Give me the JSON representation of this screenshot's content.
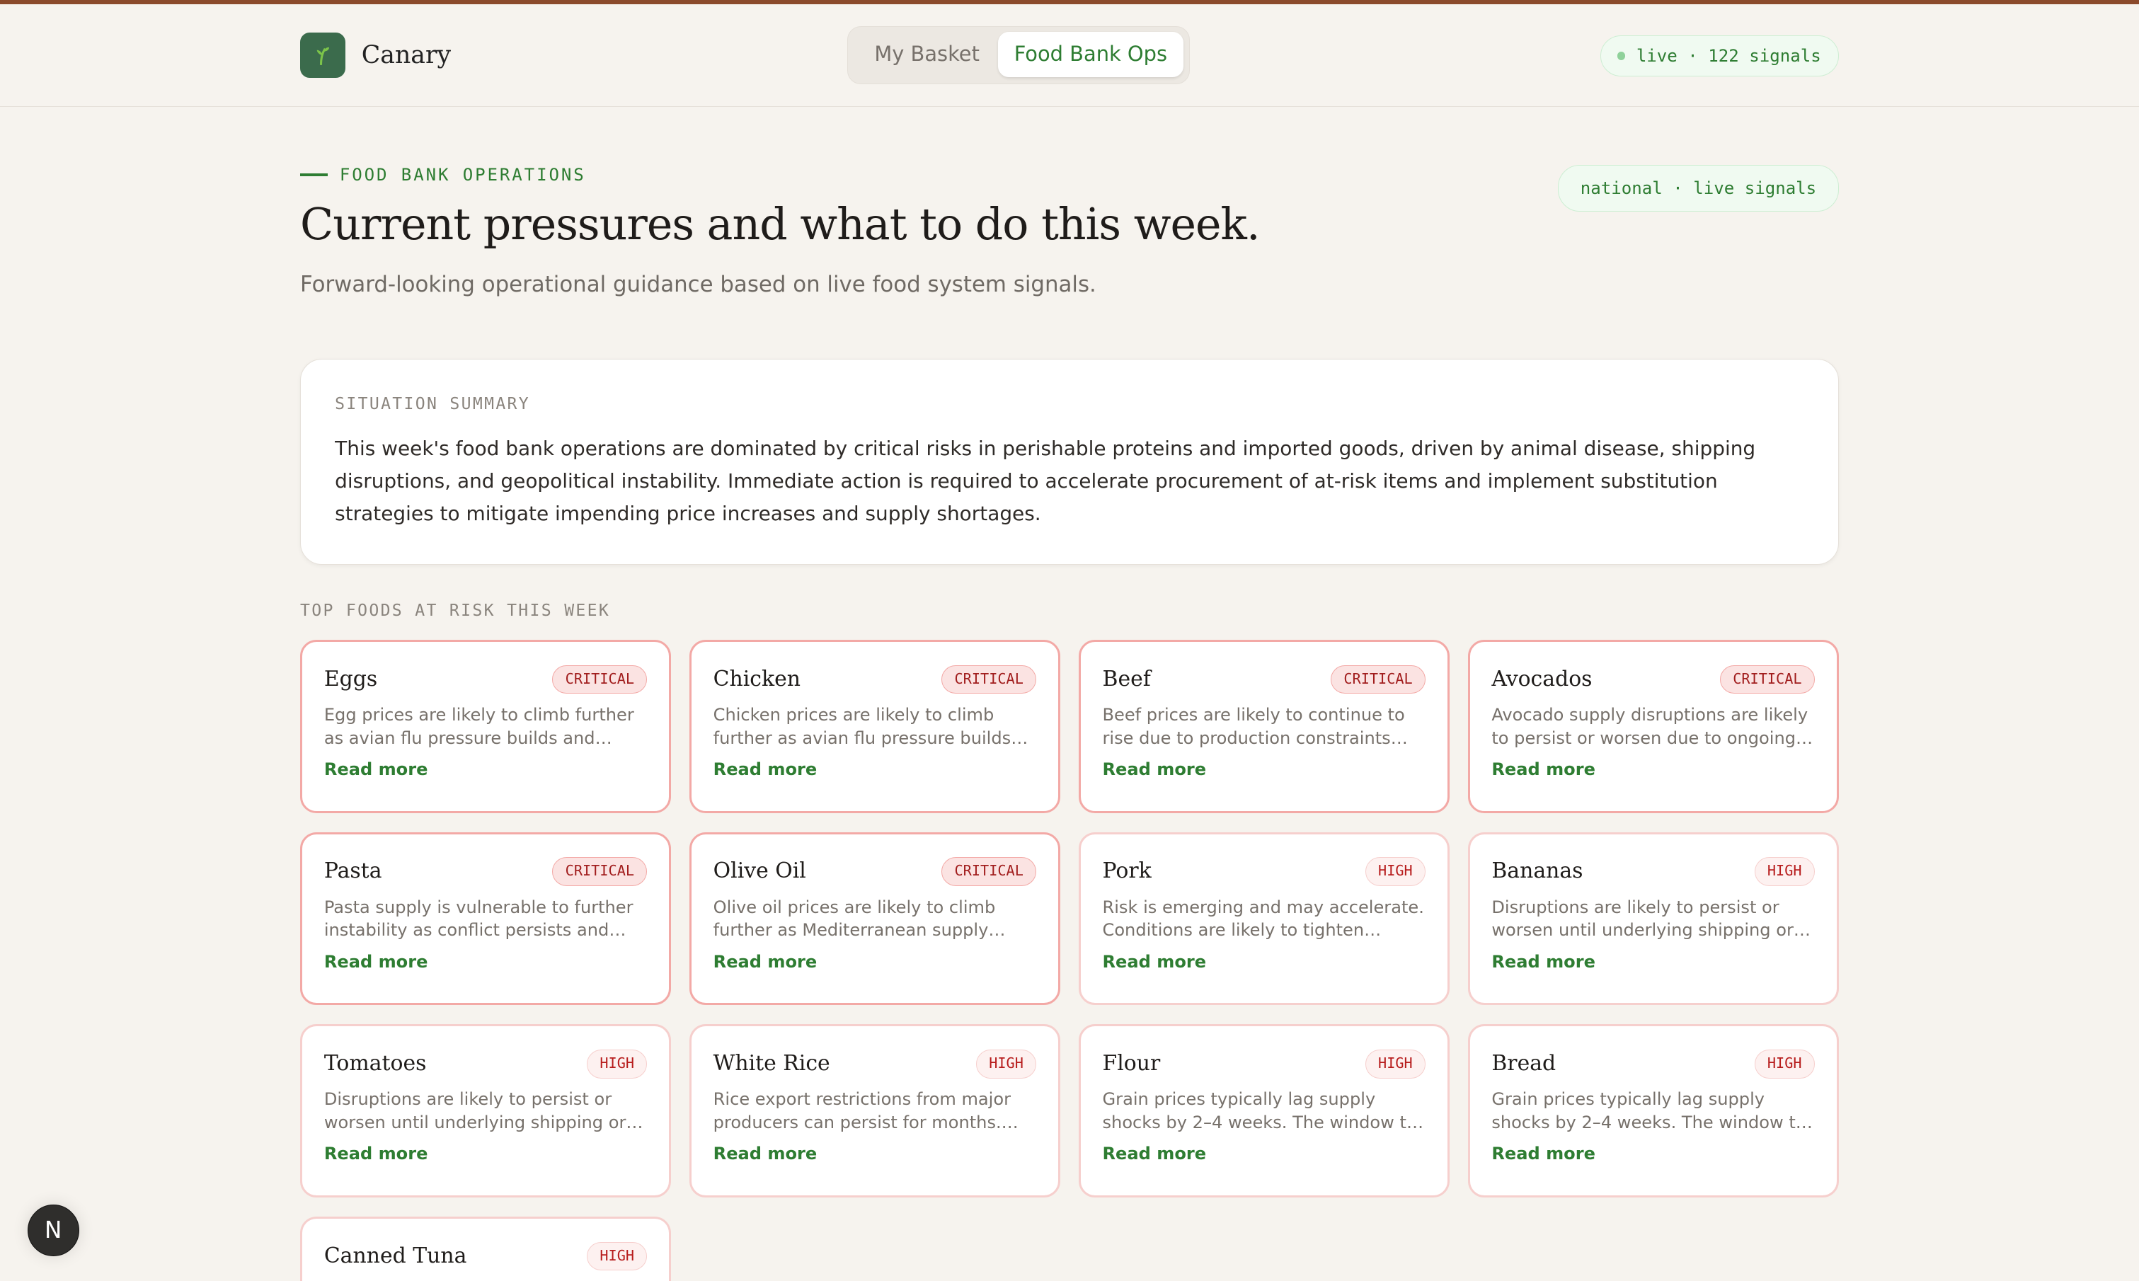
{
  "app": {
    "name": "Canary",
    "logo_icon": "sprout-icon"
  },
  "nav": {
    "tabs": [
      {
        "label": "My Basket",
        "active": false
      },
      {
        "label": "Food Bank Ops",
        "active": true
      }
    ]
  },
  "status": {
    "live_label": "live · 122 signals",
    "scope_label": "national · live signals"
  },
  "page": {
    "eyebrow": "FOOD BANK OPERATIONS",
    "title": "Current pressures and what to do this week.",
    "subtitle": "Forward-looking operational guidance based on live food system signals."
  },
  "summary": {
    "label": "SITUATION SUMMARY",
    "text": "This week's food bank operations are dominated by critical risks in perishable proteins and imported goods, driven by animal disease, shipping disruptions, and geopolitical instability. Immediate action is required to accelerate procurement of at-risk items and implement substitution strategies to mitigate impending price increases and supply shortages."
  },
  "foods_section": {
    "label": "TOP FOODS AT RISK THIS WEEK",
    "read_more": "Read more",
    "items": [
      {
        "name": "Eggs",
        "level": "CRITICAL",
        "desc": "Egg prices are likely to climb further as avian flu pressure builds and…"
      },
      {
        "name": "Chicken",
        "level": "CRITICAL",
        "desc": "Chicken prices are likely to climb further as avian flu pressure builds and…"
      },
      {
        "name": "Beef",
        "level": "CRITICAL",
        "desc": "Beef prices are likely to continue to rise due to production constraints and high…"
      },
      {
        "name": "Avocados",
        "level": "CRITICAL",
        "desc": "Avocado supply disruptions are likely to persist or worsen due to ongoing…"
      },
      {
        "name": "Pasta",
        "level": "CRITICAL",
        "desc": "Pasta supply is vulnerable to further instability as conflict persists and fuel…"
      },
      {
        "name": "Olive Oil",
        "level": "CRITICAL",
        "desc": "Olive oil prices are likely to climb further as Mediterranean supply constraints…"
      },
      {
        "name": "Pork",
        "level": "HIGH",
        "desc": "Risk is emerging and may accelerate. Conditions are likely to tighten further…"
      },
      {
        "name": "Bananas",
        "level": "HIGH",
        "desc": "Disruptions are likely to persist or worsen until underlying shipping or trad…"
      },
      {
        "name": "Tomatoes",
        "level": "HIGH",
        "desc": "Disruptions are likely to persist or worsen until underlying shipping or trad…"
      },
      {
        "name": "White Rice",
        "level": "HIGH",
        "desc": "Rice export restrictions from major producers can persist for months. Grai…"
      },
      {
        "name": "Flour",
        "level": "HIGH",
        "desc": "Grain prices typically lag supply shocks by 2–4 weeks. The window to buy ahea…"
      },
      {
        "name": "Bread",
        "level": "HIGH",
        "desc": "Grain prices typically lag supply shocks by 2–4 weeks. The window to buy ahea…"
      },
      {
        "name": "Canned Tuna",
        "level": "HIGH",
        "desc": ""
      }
    ]
  },
  "dev_badge": {
    "label": "N"
  },
  "colors": {
    "accent": "#2e7d32",
    "critical": "#a11d1d",
    "top_bar": "#8b4a2b",
    "background": "#f6f3ee"
  }
}
